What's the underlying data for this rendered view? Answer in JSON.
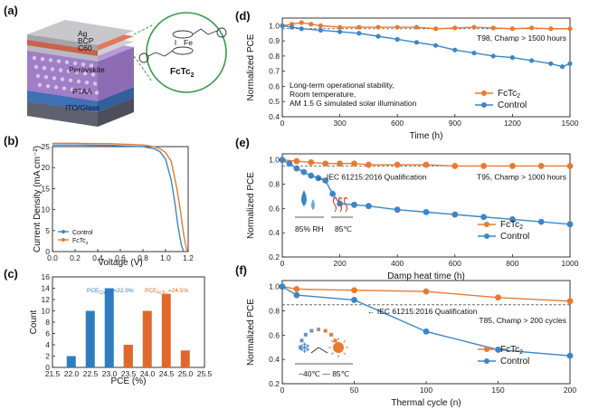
{
  "colors": {
    "orange": "#e87a33",
    "blue": "#3d86c6",
    "bar_blue": "#2f7dc0",
    "bar_orange": "#e0682a",
    "grey": "#888888"
  },
  "panel_a": {
    "label": "(a)",
    "layers": [
      "Ag",
      "BCP",
      "C60",
      "Perovskite",
      "PTAA",
      "ITO/Glass"
    ],
    "molecule": "FcTc",
    "molecule_sub": "2",
    "metal": "Fe"
  },
  "chart_data": [
    {
      "id": "b",
      "label": "(b)",
      "type": "line",
      "xlabel": "Voltage (V)",
      "ylabel": "Current Density (mA cm⁻²)",
      "xlim": [
        0,
        1.2
      ],
      "ylim": [
        0,
        25
      ],
      "xticks": [
        0,
        0.2,
        0.4,
        0.6,
        0.8,
        1.0,
        1.2
      ],
      "yticks": [
        0,
        5,
        10,
        15,
        20,
        25
      ],
      "legend": "bottom-left",
      "series": [
        {
          "name": "Control",
          "color": "#3d86c6",
          "x": [
            0,
            0.1,
            0.2,
            0.3,
            0.4,
            0.5,
            0.6,
            0.7,
            0.8,
            0.9,
            0.95,
            1.0,
            1.05,
            1.08,
            1.11,
            1.14,
            1.16
          ],
          "y": [
            25.4,
            25.4,
            25.4,
            25.35,
            25.3,
            25.3,
            25.2,
            25.1,
            25.0,
            24.5,
            23.8,
            22.0,
            17.0,
            12.0,
            6.0,
            1.5,
            0
          ]
        },
        {
          "name": "FcTc",
          "sub": "2",
          "color": "#e87a33",
          "x": [
            0,
            0.1,
            0.2,
            0.3,
            0.4,
            0.5,
            0.6,
            0.7,
            0.8,
            0.9,
            0.95,
            1.0,
            1.05,
            1.1,
            1.13,
            1.16,
            1.19
          ],
          "y": [
            25.8,
            25.8,
            25.8,
            25.75,
            25.7,
            25.7,
            25.6,
            25.5,
            25.4,
            25.0,
            24.5,
            23.6,
            21.5,
            15.0,
            10.0,
            4.0,
            0
          ]
        }
      ]
    },
    {
      "id": "c",
      "label": "(c)",
      "type": "bar",
      "xlabel": "PCE (%)",
      "ylabel": "Count",
      "xlim": [
        21.5,
        25.5
      ],
      "ylim": [
        0,
        16
      ],
      "xticks": [
        21.5,
        22.0,
        22.5,
        23.0,
        23.5,
        24.0,
        24.5,
        25.0,
        25.5
      ],
      "yticks": [
        0,
        2,
        4,
        6,
        8,
        10,
        12,
        14,
        16
      ],
      "bin_width": 0.25,
      "series": [
        {
          "name": "Control",
          "color": "#2f7dc0",
          "x": [
            22.0,
            22.5,
            23.0,
            23.5
          ],
          "values": [
            2,
            10,
            14,
            4
          ],
          "annotation": {
            "base": "PCE",
            "sub": "Control",
            "value": "=22.5%"
          }
        },
        {
          "name": "FcTc2",
          "color": "#e0682a",
          "x": [
            23.5,
            24.0,
            24.5,
            25.0
          ],
          "values": [
            4,
            10,
            13,
            3
          ],
          "annotation": {
            "base": "PCE",
            "sub": "FcTc₂",
            "value": "=24.5%"
          }
        }
      ]
    },
    {
      "id": "d",
      "label": "(d)",
      "type": "line",
      "xlabel": "Time (h)",
      "ylabel": "Normalized PCE",
      "xlim": [
        0,
        1500
      ],
      "ylim": [
        0.4,
        1.05
      ],
      "xticks": [
        0,
        300,
        600,
        900,
        1200,
        1500
      ],
      "yticks": [
        0.4,
        0.5,
        0.6,
        0.7,
        0.8,
        0.9,
        1.0
      ],
      "reference_line": 0.98,
      "top_note": "T98, Champ > 1500 hours",
      "description": [
        "Long-term operational stability,",
        "Room temperature,",
        "AM 1.5 G simulated solar illumination"
      ],
      "legend": "bottom-right",
      "series": [
        {
          "name": "FcTc",
          "sub": "2",
          "color": "#e87a33",
          "x": [
            0,
            50,
            100,
            150,
            200,
            300,
            400,
            500,
            600,
            700,
            800,
            900,
            1000,
            1100,
            1200,
            1300,
            1400,
            1500
          ],
          "y": [
            1.0,
            1.01,
            1.02,
            1.01,
            1.0,
            0.99,
            0.99,
            0.99,
            0.99,
            0.99,
            0.98,
            0.985,
            0.99,
            0.985,
            0.98,
            0.985,
            0.98,
            0.98
          ]
        },
        {
          "name": "Control",
          "color": "#3d86c6",
          "x": [
            0,
            50,
            100,
            200,
            300,
            400,
            500,
            600,
            700,
            800,
            900,
            1000,
            1100,
            1200,
            1300,
            1400,
            1460,
            1500
          ],
          "y": [
            1.0,
            0.99,
            0.98,
            0.97,
            0.96,
            0.95,
            0.93,
            0.91,
            0.89,
            0.87,
            0.84,
            0.82,
            0.8,
            0.79,
            0.77,
            0.75,
            0.73,
            0.75
          ]
        }
      ]
    },
    {
      "id": "e",
      "label": "(e)",
      "type": "line",
      "xlabel": "Damp heat time (h)",
      "ylabel": "Normalized PCE",
      "xlim": [
        0,
        1000
      ],
      "ylim": [
        0.2,
        1.05
      ],
      "xticks": [
        0,
        200,
        400,
        600,
        800,
        1000
      ],
      "yticks": [
        0.2,
        0.4,
        0.6,
        0.8,
        1.0
      ],
      "reference_line": 0.95,
      "reference_label": "IEC 61215:2016 Qualification",
      "top_note": "T95, Champ > 1000 hours",
      "icons": [
        "85% RH",
        "85℃"
      ],
      "legend": "bottom-right",
      "series": [
        {
          "name": "FcTc",
          "sub": "2",
          "color": "#e87a33",
          "x": [
            0,
            50,
            100,
            150,
            200,
            250,
            300,
            400,
            500,
            600,
            700,
            800,
            900,
            1000
          ],
          "y": [
            1.0,
            0.99,
            0.98,
            0.97,
            0.97,
            0.97,
            0.96,
            0.96,
            0.96,
            0.95,
            0.95,
            0.95,
            0.95,
            0.95
          ]
        },
        {
          "name": "Control",
          "color": "#3d86c6",
          "x": [
            0,
            25,
            50,
            75,
            100,
            125,
            150,
            175,
            200,
            250,
            300,
            400,
            500,
            600,
            700,
            800,
            900,
            1000
          ],
          "y": [
            1.0,
            0.97,
            0.93,
            0.9,
            0.87,
            0.85,
            0.83,
            0.72,
            0.64,
            0.63,
            0.62,
            0.59,
            0.57,
            0.55,
            0.53,
            0.51,
            0.49,
            0.47
          ]
        }
      ]
    },
    {
      "id": "f",
      "label": "(f)",
      "type": "line",
      "xlabel": "Thermal cycle (n)",
      "ylabel": "Normalized PCE",
      "xlim": [
        0,
        200
      ],
      "ylim": [
        0.2,
        1.05
      ],
      "xticks": [
        0,
        50,
        100,
        150,
        200
      ],
      "yticks": [
        0.2,
        0.4,
        0.6,
        0.8,
        1.0
      ],
      "reference_line": 0.85,
      "reference_label": "IEC 61215:2016 Qualification",
      "top_note": "T85, Champ > 200 cycles",
      "icon_label": "−40℃ — 85℃",
      "legend": "bottom-right",
      "series": [
        {
          "name": "FcTc",
          "sub": "2",
          "color": "#e87a33",
          "x": [
            0,
            10,
            50,
            100,
            150,
            200
          ],
          "y": [
            1.0,
            0.98,
            0.97,
            0.96,
            0.91,
            0.88
          ]
        },
        {
          "name": "Control",
          "color": "#3d86c6",
          "x": [
            0,
            10,
            50,
            100,
            150,
            200
          ],
          "y": [
            1.0,
            0.93,
            0.89,
            0.63,
            0.48,
            0.43
          ]
        }
      ]
    }
  ]
}
